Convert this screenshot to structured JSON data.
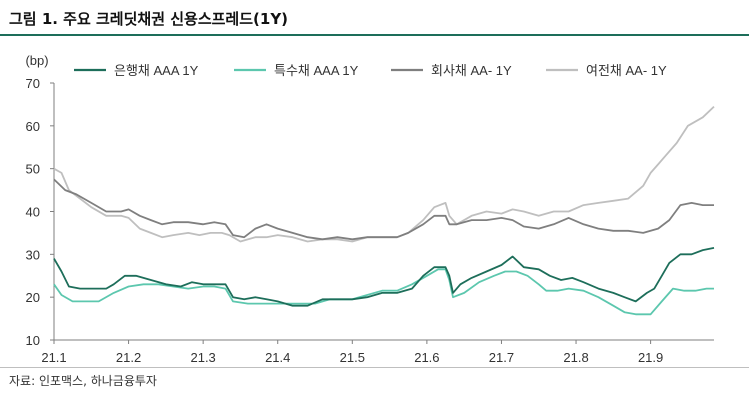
{
  "title": "그림 1. 주요 크레딧채권 신용스프레드(1Y)",
  "source": "자료: 인포맥스, 하나금융투자",
  "chart_data": {
    "type": "line",
    "ylabel": "(bp)",
    "ylim": [
      10,
      70
    ],
    "yticks": [
      10,
      20,
      30,
      40,
      50,
      60,
      70
    ],
    "xlim": [
      1.0,
      9.85
    ],
    "xticks": [
      {
        "pos": 1,
        "label": "21.1"
      },
      {
        "pos": 2,
        "label": "21.2"
      },
      {
        "pos": 3,
        "label": "21.3"
      },
      {
        "pos": 4,
        "label": "21.4"
      },
      {
        "pos": 5,
        "label": "21.5"
      },
      {
        "pos": 6,
        "label": "21.6"
      },
      {
        "pos": 7,
        "label": "21.7"
      },
      {
        "pos": 8,
        "label": "21.8"
      },
      {
        "pos": 9,
        "label": "21.9"
      }
    ],
    "grid": false,
    "legend": "top",
    "series": [
      {
        "name": "은행채 AAA 1Y",
        "color": "#1d6e5a",
        "points": [
          [
            1.0,
            29
          ],
          [
            1.1,
            26
          ],
          [
            1.2,
            22.5
          ],
          [
            1.35,
            22
          ],
          [
            1.5,
            22
          ],
          [
            1.7,
            22
          ],
          [
            1.8,
            23
          ],
          [
            1.95,
            25
          ],
          [
            2.1,
            25
          ],
          [
            2.3,
            24
          ],
          [
            2.5,
            23
          ],
          [
            2.7,
            22.5
          ],
          [
            2.85,
            23.5
          ],
          [
            3.0,
            23
          ],
          [
            3.15,
            23
          ],
          [
            3.3,
            23
          ],
          [
            3.4,
            20
          ],
          [
            3.55,
            19.5
          ],
          [
            3.7,
            20
          ],
          [
            3.85,
            19.5
          ],
          [
            4.0,
            19
          ],
          [
            4.2,
            18
          ],
          [
            4.4,
            18
          ],
          [
            4.6,
            19.5
          ],
          [
            4.8,
            19.5
          ],
          [
            5.0,
            19.5
          ],
          [
            5.2,
            20
          ],
          [
            5.4,
            21
          ],
          [
            5.6,
            21
          ],
          [
            5.8,
            22
          ],
          [
            5.95,
            25
          ],
          [
            6.1,
            27
          ],
          [
            6.25,
            27
          ],
          [
            6.3,
            25
          ],
          [
            6.35,
            21
          ],
          [
            6.45,
            23
          ],
          [
            6.6,
            24.5
          ],
          [
            6.8,
            26
          ],
          [
            7.0,
            27.5
          ],
          [
            7.15,
            29.5
          ],
          [
            7.3,
            27
          ],
          [
            7.5,
            26.5
          ],
          [
            7.65,
            25
          ],
          [
            7.8,
            24
          ],
          [
            7.95,
            24.5
          ],
          [
            8.1,
            23.5
          ],
          [
            8.3,
            22
          ],
          [
            8.5,
            21
          ],
          [
            8.65,
            20
          ],
          [
            8.8,
            19
          ],
          [
            8.95,
            21
          ],
          [
            9.05,
            22
          ],
          [
            9.15,
            25
          ],
          [
            9.25,
            28
          ],
          [
            9.4,
            30
          ],
          [
            9.55,
            30
          ],
          [
            9.7,
            31
          ],
          [
            9.85,
            31.5
          ]
        ]
      },
      {
        "name": "특수채 AAA 1Y",
        "color": "#5cc7ae",
        "points": [
          [
            1.0,
            23
          ],
          [
            1.1,
            20.5
          ],
          [
            1.25,
            19
          ],
          [
            1.4,
            19
          ],
          [
            1.6,
            19
          ],
          [
            1.8,
            21
          ],
          [
            2.0,
            22.5
          ],
          [
            2.2,
            23
          ],
          [
            2.4,
            23
          ],
          [
            2.6,
            22.5
          ],
          [
            2.8,
            22
          ],
          [
            3.0,
            22.5
          ],
          [
            3.15,
            22.5
          ],
          [
            3.3,
            22
          ],
          [
            3.4,
            19
          ],
          [
            3.6,
            18.5
          ],
          [
            3.8,
            18.5
          ],
          [
            4.0,
            18.5
          ],
          [
            4.2,
            18.5
          ],
          [
            4.5,
            18.5
          ],
          [
            4.7,
            19.5
          ],
          [
            4.9,
            19.5
          ],
          [
            5.0,
            19.5
          ],
          [
            5.2,
            20.5
          ],
          [
            5.4,
            21.5
          ],
          [
            5.6,
            21.5
          ],
          [
            5.8,
            23
          ],
          [
            6.0,
            25
          ],
          [
            6.15,
            26.5
          ],
          [
            6.25,
            26.5
          ],
          [
            6.3,
            24
          ],
          [
            6.35,
            20
          ],
          [
            6.5,
            21
          ],
          [
            6.7,
            23.5
          ],
          [
            6.9,
            25
          ],
          [
            7.05,
            26
          ],
          [
            7.2,
            26
          ],
          [
            7.35,
            25
          ],
          [
            7.5,
            23
          ],
          [
            7.6,
            21.5
          ],
          [
            7.75,
            21.5
          ],
          [
            7.9,
            22
          ],
          [
            8.1,
            21.5
          ],
          [
            8.3,
            20
          ],
          [
            8.5,
            18
          ],
          [
            8.65,
            16.5
          ],
          [
            8.8,
            16
          ],
          [
            9.0,
            16
          ],
          [
            9.15,
            19
          ],
          [
            9.3,
            22
          ],
          [
            9.45,
            21.5
          ],
          [
            9.6,
            21.5
          ],
          [
            9.75,
            22
          ],
          [
            9.85,
            22
          ]
        ]
      },
      {
        "name": "회사채 AA- 1Y",
        "color": "#7f7f7f",
        "points": [
          [
            1.0,
            47.5
          ],
          [
            1.15,
            45
          ],
          [
            1.3,
            44
          ],
          [
            1.5,
            42
          ],
          [
            1.7,
            40
          ],
          [
            1.9,
            40
          ],
          [
            2.0,
            40.5
          ],
          [
            2.15,
            39
          ],
          [
            2.3,
            38
          ],
          [
            2.45,
            37
          ],
          [
            2.6,
            37.5
          ],
          [
            2.8,
            37.5
          ],
          [
            3.0,
            37
          ],
          [
            3.15,
            37.5
          ],
          [
            3.3,
            37
          ],
          [
            3.4,
            34.5
          ],
          [
            3.55,
            34
          ],
          [
            3.7,
            36
          ],
          [
            3.85,
            37
          ],
          [
            4.0,
            36
          ],
          [
            4.2,
            35
          ],
          [
            4.4,
            34
          ],
          [
            4.6,
            33.5
          ],
          [
            4.8,
            34
          ],
          [
            5.0,
            33.5
          ],
          [
            5.2,
            34
          ],
          [
            5.4,
            34
          ],
          [
            5.6,
            34
          ],
          [
            5.75,
            35
          ],
          [
            5.95,
            37
          ],
          [
            6.1,
            39
          ],
          [
            6.25,
            39
          ],
          [
            6.3,
            37
          ],
          [
            6.4,
            37
          ],
          [
            6.6,
            38
          ],
          [
            6.8,
            38
          ],
          [
            7.0,
            38.5
          ],
          [
            7.15,
            38
          ],
          [
            7.3,
            36.5
          ],
          [
            7.5,
            36
          ],
          [
            7.7,
            37
          ],
          [
            7.9,
            38.5
          ],
          [
            8.1,
            37
          ],
          [
            8.3,
            36
          ],
          [
            8.5,
            35.5
          ],
          [
            8.7,
            35.5
          ],
          [
            8.9,
            35
          ],
          [
            9.0,
            35.5
          ],
          [
            9.1,
            36
          ],
          [
            9.25,
            38
          ],
          [
            9.4,
            41.5
          ],
          [
            9.55,
            42
          ],
          [
            9.7,
            41.5
          ],
          [
            9.85,
            41.5
          ]
        ]
      },
      {
        "name": "여전채 AA- 1Y",
        "color": "#bfbfbf",
        "points": [
          [
            1.0,
            50
          ],
          [
            1.1,
            49
          ],
          [
            1.2,
            45
          ],
          [
            1.35,
            43
          ],
          [
            1.5,
            41
          ],
          [
            1.7,
            39
          ],
          [
            1.9,
            39
          ],
          [
            2.0,
            38.5
          ],
          [
            2.15,
            36
          ],
          [
            2.3,
            35
          ],
          [
            2.45,
            34
          ],
          [
            2.6,
            34.5
          ],
          [
            2.8,
            35
          ],
          [
            2.95,
            34.5
          ],
          [
            3.1,
            35
          ],
          [
            3.25,
            35
          ],
          [
            3.35,
            34.5
          ],
          [
            3.5,
            33
          ],
          [
            3.7,
            34
          ],
          [
            3.85,
            34
          ],
          [
            4.0,
            34.5
          ],
          [
            4.2,
            34
          ],
          [
            4.4,
            33
          ],
          [
            4.6,
            33.5
          ],
          [
            4.8,
            33.5
          ],
          [
            5.0,
            33
          ],
          [
            5.2,
            34
          ],
          [
            5.4,
            34
          ],
          [
            5.6,
            34
          ],
          [
            5.75,
            35
          ],
          [
            5.95,
            38
          ],
          [
            6.1,
            41
          ],
          [
            6.25,
            42
          ],
          [
            6.3,
            39
          ],
          [
            6.4,
            37
          ],
          [
            6.6,
            39
          ],
          [
            6.8,
            40
          ],
          [
            7.0,
            39.5
          ],
          [
            7.15,
            40.5
          ],
          [
            7.3,
            40
          ],
          [
            7.5,
            39
          ],
          [
            7.7,
            40
          ],
          [
            7.9,
            40
          ],
          [
            8.1,
            41.5
          ],
          [
            8.3,
            42
          ],
          [
            8.5,
            42.5
          ],
          [
            8.7,
            43
          ],
          [
            8.9,
            46
          ],
          [
            9.0,
            49
          ],
          [
            9.1,
            51
          ],
          [
            9.2,
            53
          ],
          [
            9.35,
            56
          ],
          [
            9.5,
            60
          ],
          [
            9.7,
            62
          ],
          [
            9.85,
            64.5
          ]
        ]
      }
    ]
  }
}
